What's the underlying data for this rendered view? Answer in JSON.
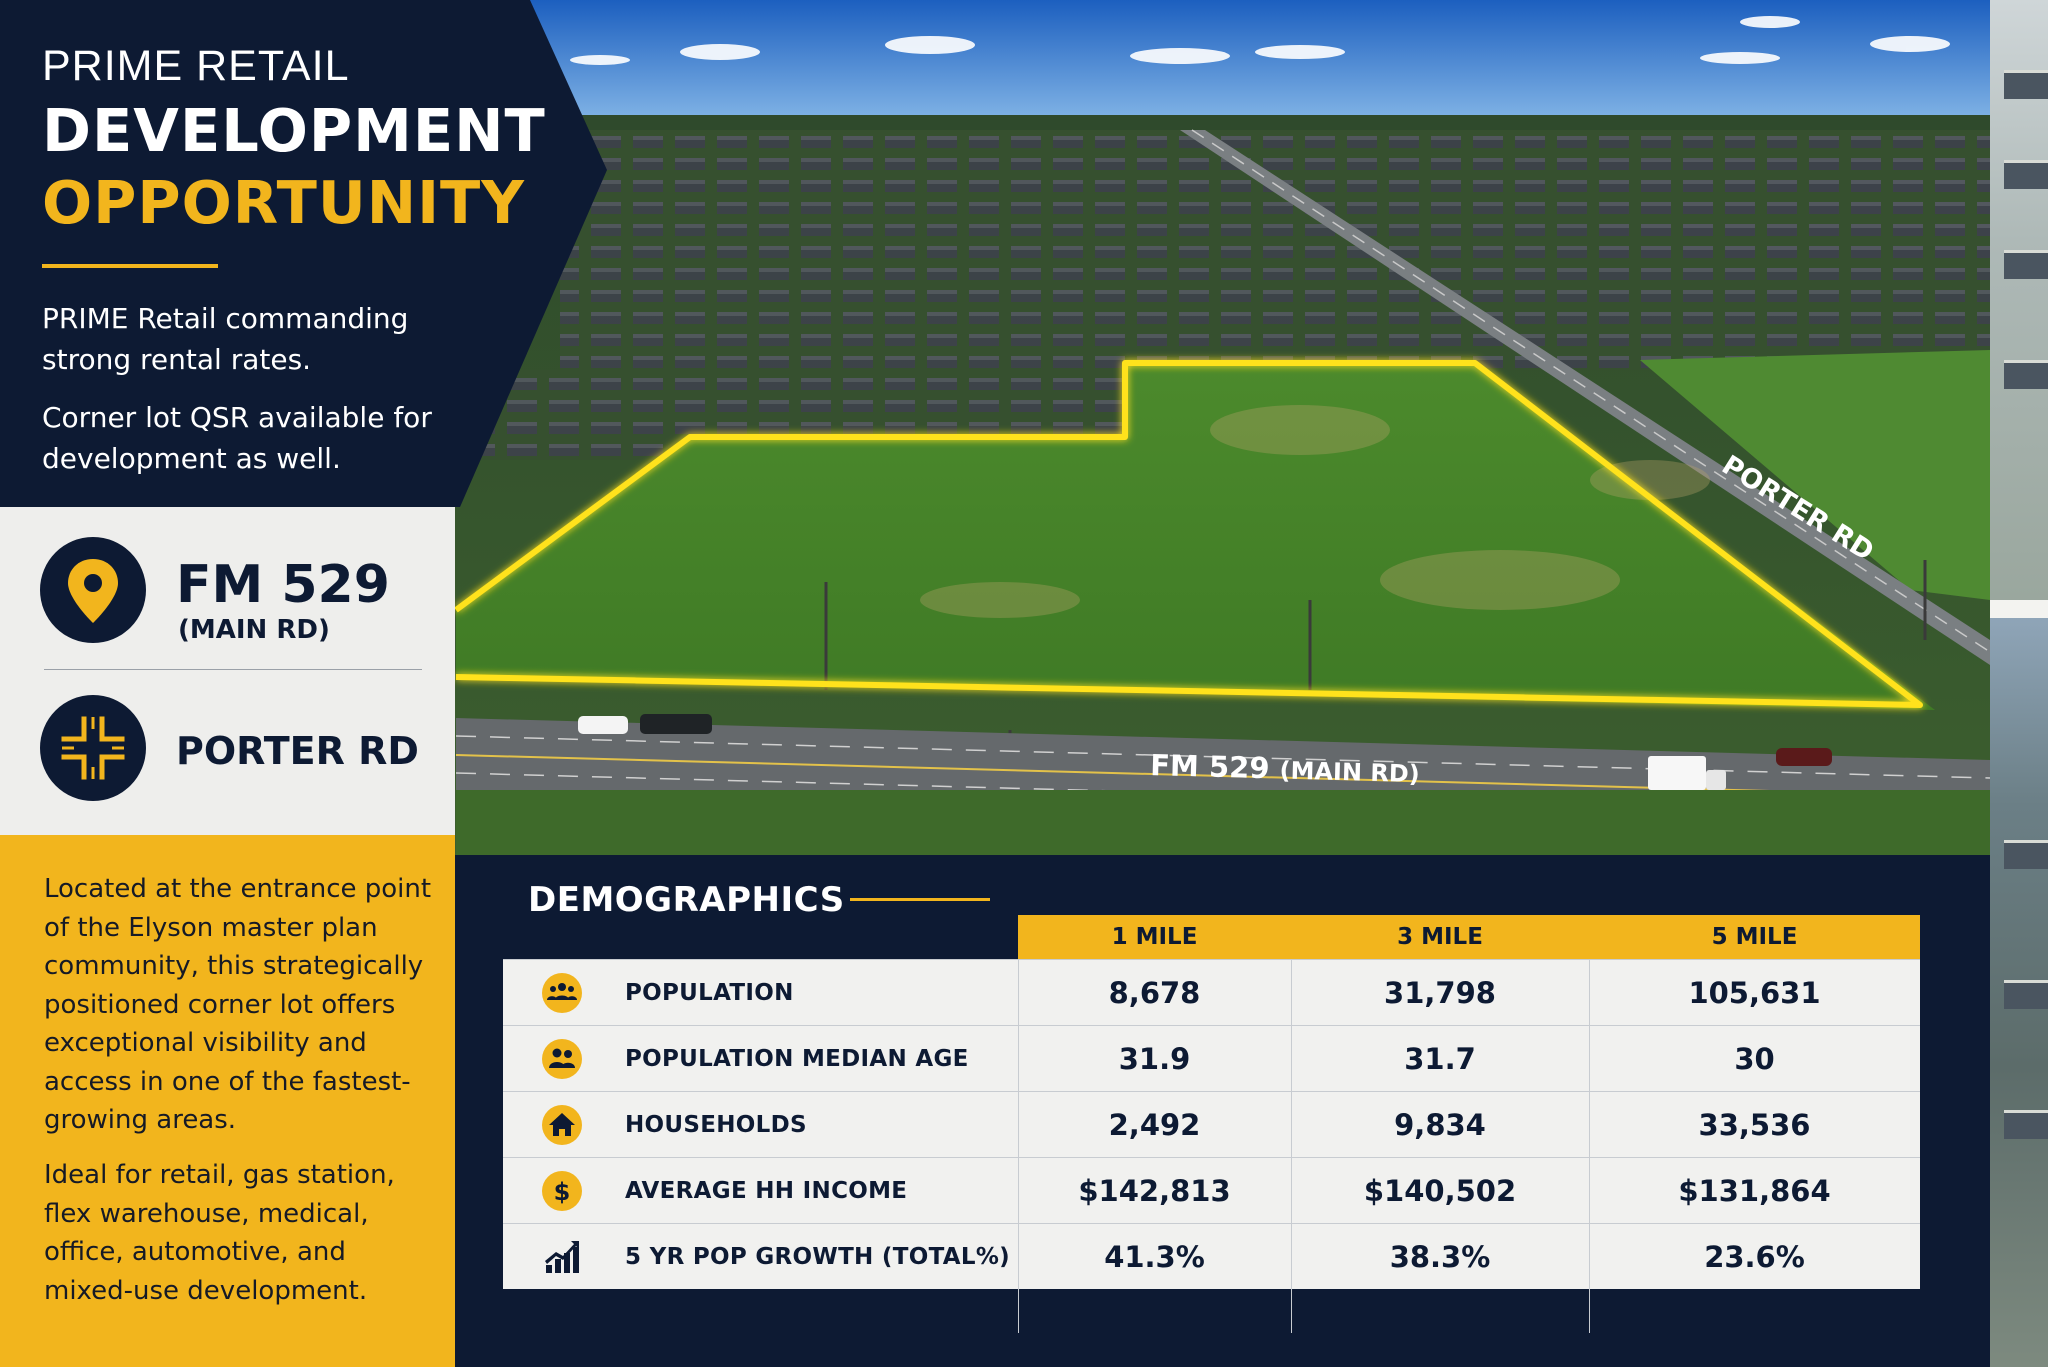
{
  "header": {
    "kicker": "PRIME RETAIL",
    "title_line1": "DEVELOPMENT",
    "title_line2": "OPPORTUNITY",
    "intro_1": "PRIME Retail commanding strong rental rates.",
    "intro_2": "Corner lot QSR available for development as well."
  },
  "roads": [
    {
      "icon": "location-pin-icon",
      "name": "FM 529",
      "sub": "(MAIN RD)"
    },
    {
      "icon": "intersection-icon",
      "name": "PORTER RD"
    }
  ],
  "description": {
    "para_1": "Located at the entrance point of the Elyson master plan community, this strategically positioned corner lot offers exceptional visibility and access in one of the fastest-growing areas.",
    "para_2": "Ideal for retail, gas station, flex warehouse, medical, office, automotive, and mixed-use development."
  },
  "map_labels": {
    "porter": "PORTER RD",
    "fm529_main": "FM 529",
    "fm529_sub": "(MAIN RD)"
  },
  "demographics": {
    "title": "DEMOGRAPHICS",
    "columns": [
      "1 MILE",
      "3 MILE",
      "5 MILE"
    ],
    "rows": [
      {
        "icon": "people-group-icon",
        "label": "POPULATION",
        "values": [
          "8,678",
          "31,798",
          "105,631"
        ]
      },
      {
        "icon": "people-pair-icon",
        "label": "POPULATION MEDIAN AGE",
        "values": [
          "31.9",
          "31.7",
          "30"
        ]
      },
      {
        "icon": "house-icon",
        "label": "HOUSEHOLDS",
        "values": [
          "2,492",
          "9,834",
          "33,536"
        ]
      },
      {
        "icon": "dollar-icon",
        "label": "AVERAGE HH INCOME",
        "values": [
          "$142,813",
          "$140,502",
          "$131,864"
        ]
      },
      {
        "icon": "growth-chart-icon",
        "label": "5 YR POP GROWTH (TOTAL%)",
        "values": [
          "41.3%",
          "38.3%",
          "23.6%"
        ]
      }
    ]
  },
  "colors": {
    "navy": "#0d1a33",
    "accent_yellow": "#f2b51d",
    "site_outline": "#ffe21a",
    "field_green": "#4f8a2f"
  }
}
